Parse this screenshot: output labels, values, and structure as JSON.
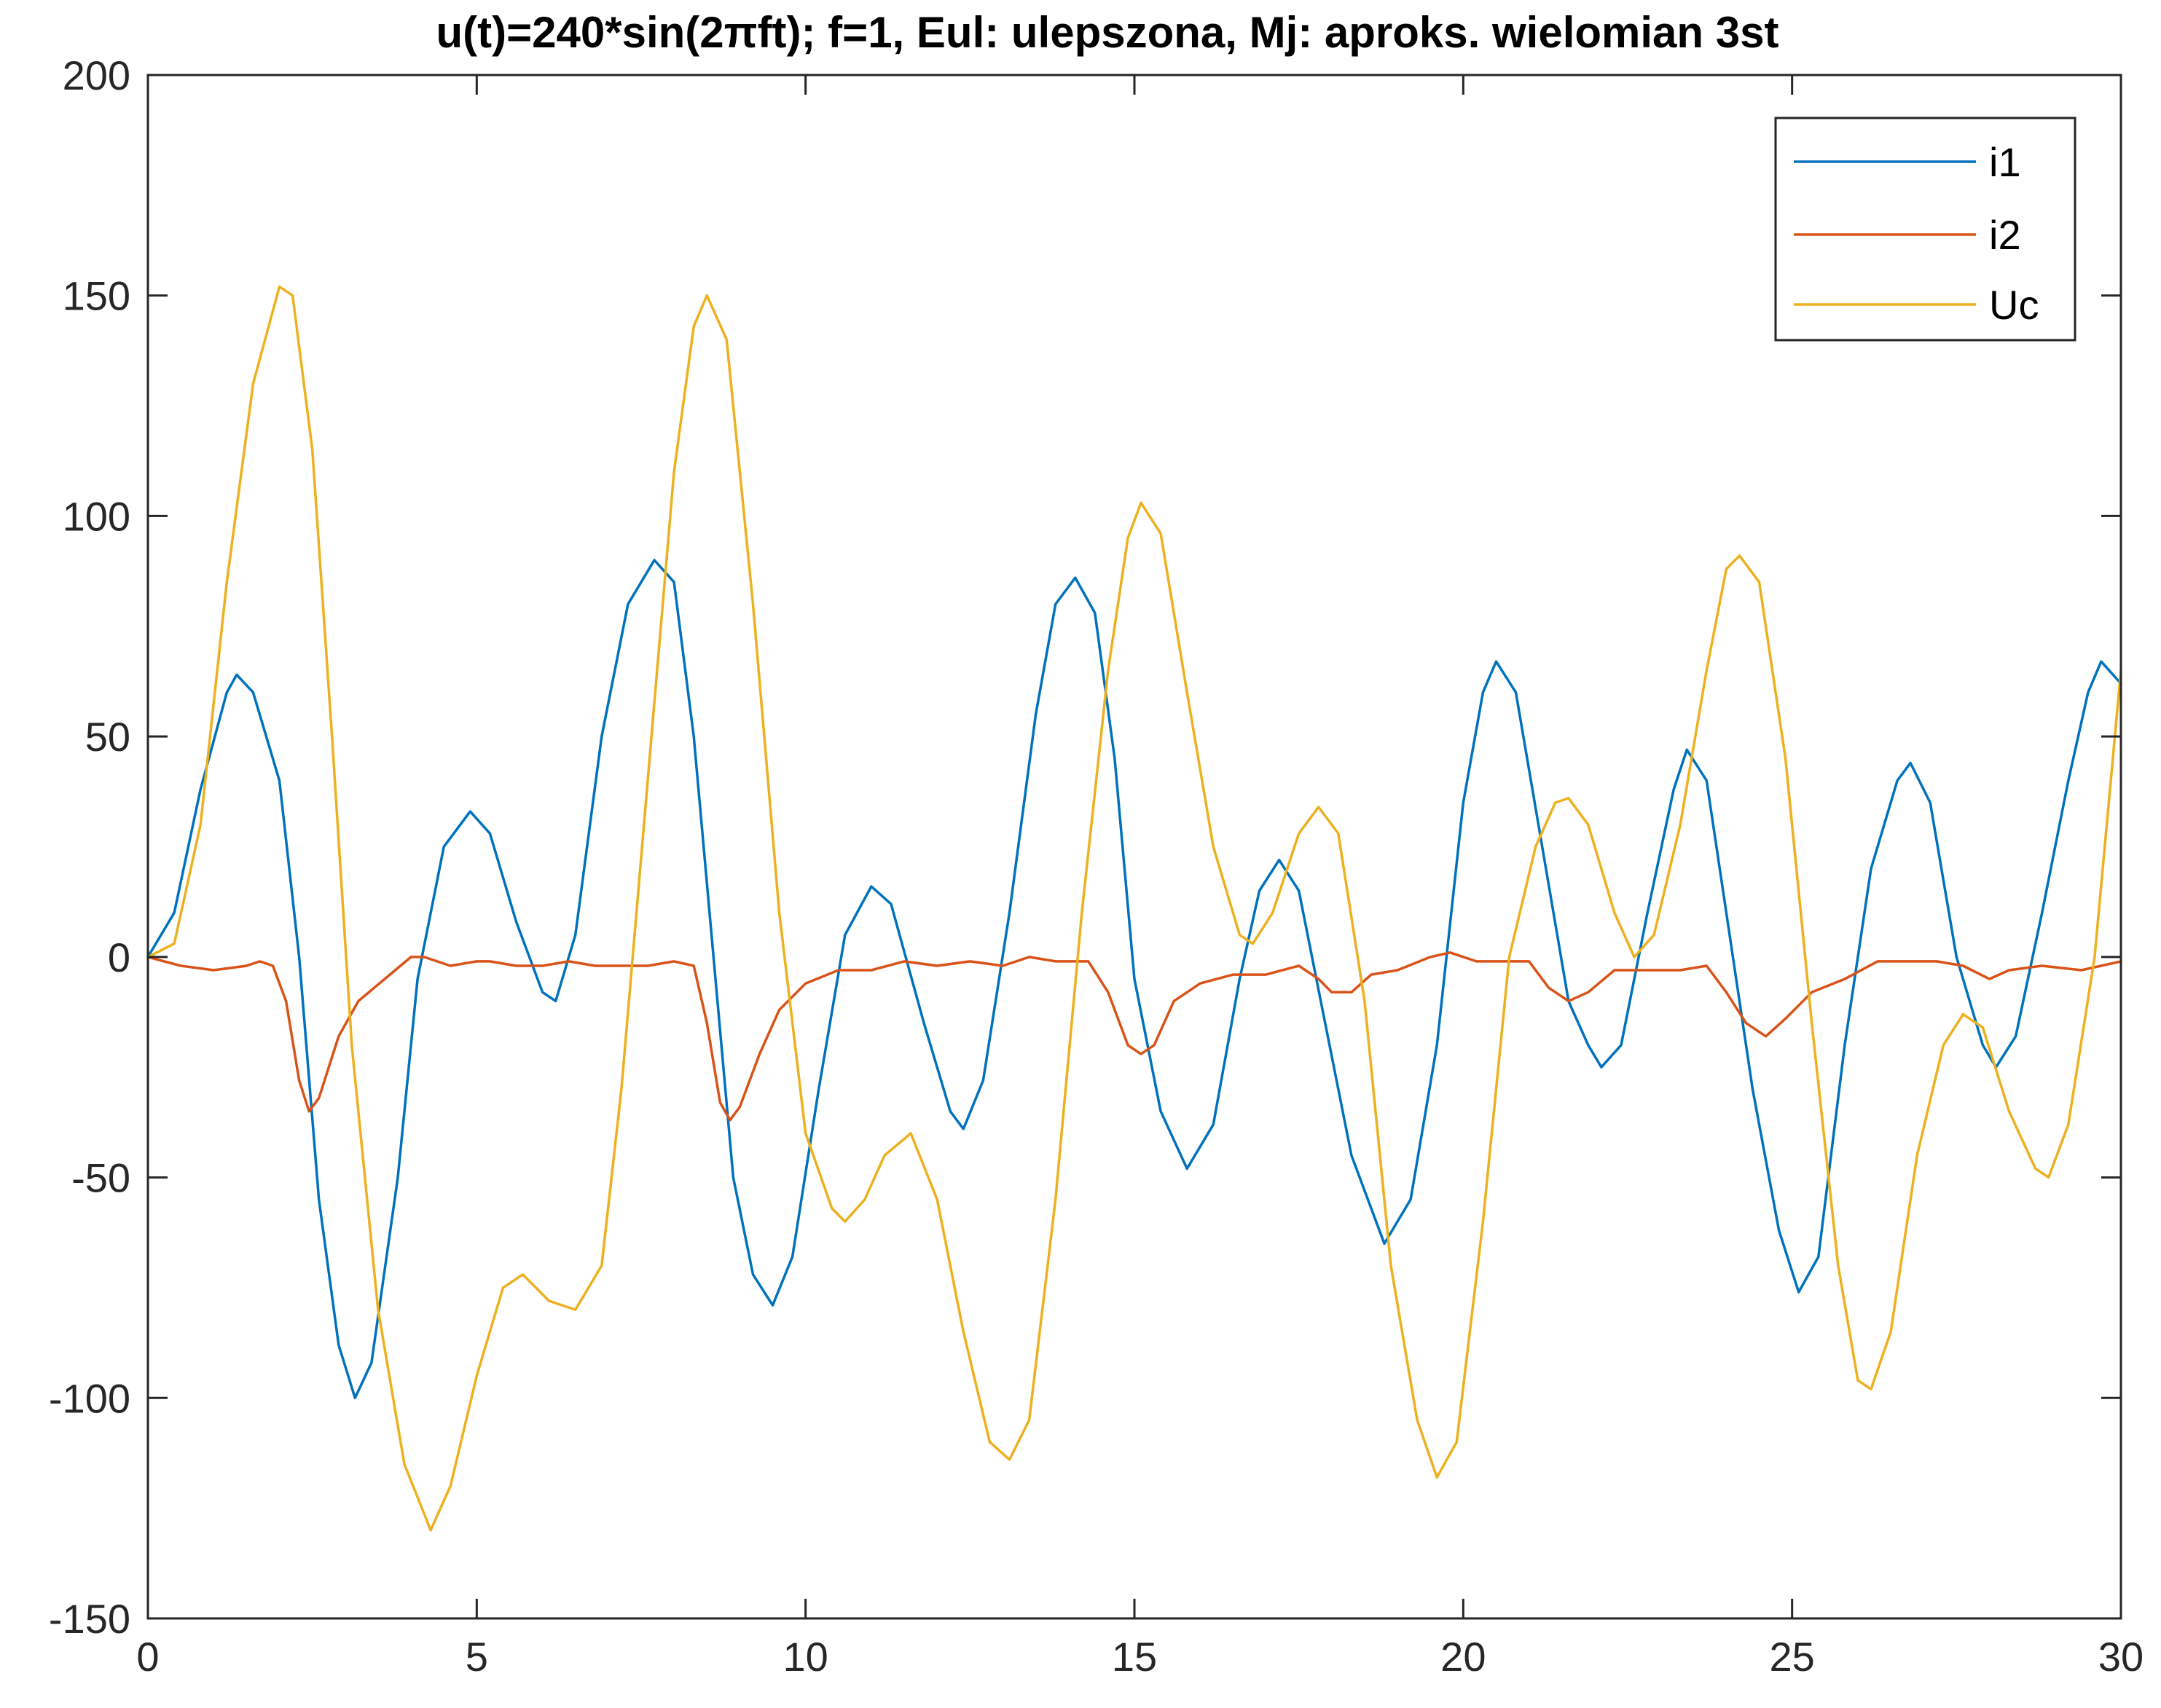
{
  "chart_data": {
    "type": "line",
    "title": "u(t)=240*sin(2πft); f=1, Eul: ulepszona, Mj: aproks. wielomian 3st",
    "xlabel": "",
    "ylabel": "",
    "xlim": [
      0,
      30
    ],
    "ylim": [
      -150,
      200
    ],
    "xticks": [
      0,
      5,
      10,
      15,
      20,
      25,
      30
    ],
    "yticks": [
      -150,
      -100,
      -50,
      0,
      50,
      100,
      150,
      200
    ],
    "xtick_labels": [
      "0",
      "5",
      "10",
      "15",
      "20",
      "25",
      "30"
    ],
    "ytick_labels": [
      "-150",
      "-100",
      "-50",
      "0",
      "50",
      "100",
      "150",
      "200"
    ],
    "grid": false,
    "legend_position": "top-right",
    "series": [
      {
        "name": "i1",
        "color": "#0072BD",
        "points": [
          [
            0,
            0
          ],
          [
            0.4,
            10
          ],
          [
            0.8,
            38
          ],
          [
            1.2,
            60
          ],
          [
            1.35,
            64
          ],
          [
            1.6,
            60
          ],
          [
            2.0,
            40
          ],
          [
            2.3,
            0
          ],
          [
            2.6,
            -55
          ],
          [
            2.9,
            -88
          ],
          [
            3.15,
            -100
          ],
          [
            3.4,
            -92
          ],
          [
            3.8,
            -50
          ],
          [
            4.1,
            -5
          ],
          [
            4.5,
            25
          ],
          [
            4.9,
            33
          ],
          [
            5.2,
            28
          ],
          [
            5.6,
            8
          ],
          [
            6.0,
            -8
          ],
          [
            6.2,
            -10
          ],
          [
            6.5,
            5
          ],
          [
            6.9,
            50
          ],
          [
            7.3,
            80
          ],
          [
            7.7,
            90
          ],
          [
            8.0,
            85
          ],
          [
            8.3,
            50
          ],
          [
            8.6,
            0
          ],
          [
            8.9,
            -50
          ],
          [
            9.2,
            -72
          ],
          [
            9.5,
            -79
          ],
          [
            9.8,
            -68
          ],
          [
            10.2,
            -30
          ],
          [
            10.6,
            5
          ],
          [
            11.0,
            16
          ],
          [
            11.3,
            12
          ],
          [
            11.8,
            -15
          ],
          [
            12.2,
            -35
          ],
          [
            12.4,
            -39
          ],
          [
            12.7,
            -28
          ],
          [
            13.1,
            10
          ],
          [
            13.5,
            55
          ],
          [
            13.8,
            80
          ],
          [
            14.1,
            86
          ],
          [
            14.4,
            78
          ],
          [
            14.7,
            45
          ],
          [
            15.0,
            -5
          ],
          [
            15.4,
            -35
          ],
          [
            15.8,
            -48
          ],
          [
            16.2,
            -38
          ],
          [
            16.6,
            -5
          ],
          [
            16.9,
            15
          ],
          [
            17.2,
            22
          ],
          [
            17.5,
            15
          ],
          [
            17.9,
            -15
          ],
          [
            18.3,
            -45
          ],
          [
            18.8,
            -65
          ],
          [
            19.2,
            -55
          ],
          [
            19.6,
            -20
          ],
          [
            20.0,
            35
          ],
          [
            20.3,
            60
          ],
          [
            20.5,
            67
          ],
          [
            20.8,
            60
          ],
          [
            21.2,
            25
          ],
          [
            21.6,
            -10
          ],
          [
            21.9,
            -20
          ],
          [
            22.1,
            -25
          ],
          [
            22.4,
            -20
          ],
          [
            22.8,
            10
          ],
          [
            23.2,
            38
          ],
          [
            23.4,
            47
          ],
          [
            23.7,
            40
          ],
          [
            24.0,
            10
          ],
          [
            24.4,
            -30
          ],
          [
            24.8,
            -62
          ],
          [
            25.1,
            -76
          ],
          [
            25.4,
            -68
          ],
          [
            25.8,
            -20
          ],
          [
            26.2,
            20
          ],
          [
            26.6,
            40
          ],
          [
            26.8,
            44
          ],
          [
            27.1,
            35
          ],
          [
            27.5,
            0
          ],
          [
            27.9,
            -20
          ],
          [
            28.1,
            -25
          ],
          [
            28.4,
            -18
          ],
          [
            28.8,
            10
          ],
          [
            29.2,
            40
          ],
          [
            29.5,
            60
          ],
          [
            29.7,
            67
          ],
          [
            30,
            62
          ]
        ]
      },
      {
        "name": "i2",
        "color": "#D95319",
        "points": [
          [
            0,
            0
          ],
          [
            0.5,
            -2
          ],
          [
            1.0,
            -3
          ],
          [
            1.5,
            -2
          ],
          [
            1.7,
            -1
          ],
          [
            1.9,
            -2
          ],
          [
            2.1,
            -10
          ],
          [
            2.3,
            -28
          ],
          [
            2.45,
            -35
          ],
          [
            2.6,
            -32
          ],
          [
            2.9,
            -18
          ],
          [
            3.2,
            -10
          ],
          [
            3.6,
            -5
          ],
          [
            4.0,
            0
          ],
          [
            4.2,
            0
          ],
          [
            4.6,
            -2
          ],
          [
            5.0,
            -1
          ],
          [
            5.2,
            -1
          ],
          [
            5.6,
            -2
          ],
          [
            6.0,
            -2
          ],
          [
            6.4,
            -1
          ],
          [
            6.8,
            -2
          ],
          [
            7.2,
            -2
          ],
          [
            7.6,
            -2
          ],
          [
            8.0,
            -1
          ],
          [
            8.3,
            -2
          ],
          [
            8.5,
            -15
          ],
          [
            8.7,
            -33
          ],
          [
            8.85,
            -37
          ],
          [
            9.0,
            -34
          ],
          [
            9.3,
            -22
          ],
          [
            9.6,
            -12
          ],
          [
            10.0,
            -6
          ],
          [
            10.5,
            -3
          ],
          [
            11.0,
            -3
          ],
          [
            11.5,
            -1
          ],
          [
            12.0,
            -2
          ],
          [
            12.5,
            -1
          ],
          [
            13.0,
            -2
          ],
          [
            13.4,
            0
          ],
          [
            13.8,
            -1
          ],
          [
            14.3,
            -1
          ],
          [
            14.6,
            -8
          ],
          [
            14.9,
            -20
          ],
          [
            15.1,
            -22
          ],
          [
            15.3,
            -20
          ],
          [
            15.6,
            -10
          ],
          [
            16.0,
            -6
          ],
          [
            16.5,
            -4
          ],
          [
            17.0,
            -4
          ],
          [
            17.5,
            -2
          ],
          [
            17.8,
            -5
          ],
          [
            18.0,
            -8
          ],
          [
            18.3,
            -8
          ],
          [
            18.6,
            -4
          ],
          [
            19.0,
            -3
          ],
          [
            19.5,
            0
          ],
          [
            19.8,
            1
          ],
          [
            20.2,
            -1
          ],
          [
            20.6,
            -1
          ],
          [
            21.0,
            -1
          ],
          [
            21.3,
            -7
          ],
          [
            21.6,
            -10
          ],
          [
            21.9,
            -8
          ],
          [
            22.3,
            -3
          ],
          [
            22.8,
            -3
          ],
          [
            23.3,
            -3
          ],
          [
            23.7,
            -2
          ],
          [
            24.0,
            -8
          ],
          [
            24.3,
            -15
          ],
          [
            24.6,
            -18
          ],
          [
            24.9,
            -14
          ],
          [
            25.3,
            -8
          ],
          [
            25.8,
            -5
          ],
          [
            26.3,
            -1
          ],
          [
            26.8,
            -1
          ],
          [
            27.2,
            -1
          ],
          [
            27.6,
            -2
          ],
          [
            28.0,
            -5
          ],
          [
            28.3,
            -3
          ],
          [
            28.8,
            -2
          ],
          [
            29.4,
            -3
          ],
          [
            30,
            -1
          ]
        ]
      },
      {
        "name": "Uc",
        "color": "#EDB120",
        "points": [
          [
            0,
            0
          ],
          [
            0.4,
            3
          ],
          [
            0.8,
            30
          ],
          [
            1.2,
            85
          ],
          [
            1.6,
            130
          ],
          [
            2.0,
            152
          ],
          [
            2.2,
            150
          ],
          [
            2.5,
            115
          ],
          [
            2.8,
            50
          ],
          [
            3.1,
            -20
          ],
          [
            3.5,
            -80
          ],
          [
            3.9,
            -115
          ],
          [
            4.3,
            -130
          ],
          [
            4.6,
            -120
          ],
          [
            5.0,
            -95
          ],
          [
            5.4,
            -75
          ],
          [
            5.7,
            -72
          ],
          [
            6.1,
            -78
          ],
          [
            6.5,
            -80
          ],
          [
            6.9,
            -70
          ],
          [
            7.2,
            -30
          ],
          [
            7.6,
            40
          ],
          [
            8.0,
            110
          ],
          [
            8.3,
            143
          ],
          [
            8.5,
            150
          ],
          [
            8.8,
            140
          ],
          [
            9.2,
            80
          ],
          [
            9.6,
            10
          ],
          [
            10.0,
            -40
          ],
          [
            10.4,
            -57
          ],
          [
            10.6,
            -60
          ],
          [
            10.9,
            -55
          ],
          [
            11.2,
            -45
          ],
          [
            11.6,
            -40
          ],
          [
            12.0,
            -55
          ],
          [
            12.4,
            -85
          ],
          [
            12.8,
            -110
          ],
          [
            13.1,
            -114
          ],
          [
            13.4,
            -105
          ],
          [
            13.8,
            -55
          ],
          [
            14.2,
            10
          ],
          [
            14.6,
            65
          ],
          [
            14.9,
            95
          ],
          [
            15.1,
            103
          ],
          [
            15.4,
            96
          ],
          [
            15.8,
            60
          ],
          [
            16.2,
            25
          ],
          [
            16.6,
            5
          ],
          [
            16.8,
            3
          ],
          [
            17.1,
            10
          ],
          [
            17.5,
            28
          ],
          [
            17.8,
            34
          ],
          [
            18.1,
            28
          ],
          [
            18.5,
            -10
          ],
          [
            18.9,
            -70
          ],
          [
            19.3,
            -105
          ],
          [
            19.6,
            -118
          ],
          [
            19.9,
            -110
          ],
          [
            20.3,
            -60
          ],
          [
            20.7,
            0
          ],
          [
            21.1,
            25
          ],
          [
            21.4,
            35
          ],
          [
            21.6,
            36
          ],
          [
            21.9,
            30
          ],
          [
            22.3,
            10
          ],
          [
            22.6,
            0
          ],
          [
            22.9,
            5
          ],
          [
            23.3,
            30
          ],
          [
            23.7,
            65
          ],
          [
            24.0,
            88
          ],
          [
            24.2,
            91
          ],
          [
            24.5,
            85
          ],
          [
            24.9,
            45
          ],
          [
            25.3,
            -15
          ],
          [
            25.7,
            -70
          ],
          [
            26.0,
            -96
          ],
          [
            26.2,
            -98
          ],
          [
            26.5,
            -85
          ],
          [
            26.9,
            -45
          ],
          [
            27.3,
            -20
          ],
          [
            27.6,
            -13
          ],
          [
            27.9,
            -16
          ],
          [
            28.3,
            -35
          ],
          [
            28.7,
            -48
          ],
          [
            28.9,
            -50
          ],
          [
            29.2,
            -38
          ],
          [
            29.6,
            0
          ],
          [
            30,
            65
          ]
        ]
      }
    ]
  }
}
